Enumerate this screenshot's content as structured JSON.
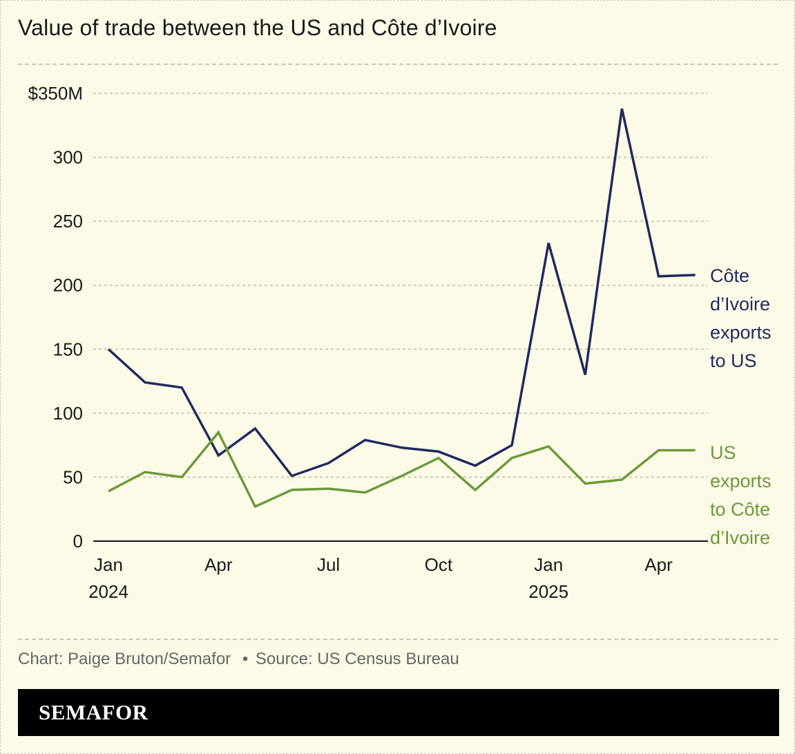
{
  "title": "Value of trade between the US and Côte d’Ivoire",
  "credit": {
    "author": "Chart: Paige Bruton/Semafor",
    "separator": "•",
    "source": "Source: US Census Bureau"
  },
  "logo": "SEMAFOR",
  "colors": {
    "background": "#fdfae8",
    "civ_exports": "#1f2a5e",
    "us_exports": "#6a9a3a",
    "grid": "#bdbaa8"
  },
  "chart_data": {
    "type": "line",
    "ylim": [
      0,
      350
    ],
    "y_ticks": [
      {
        "value": 0,
        "label": "0"
      },
      {
        "value": 50,
        "label": "50"
      },
      {
        "value": 100,
        "label": "100"
      },
      {
        "value": 150,
        "label": "150"
      },
      {
        "value": 200,
        "label": "200"
      },
      {
        "value": 250,
        "label": "250"
      },
      {
        "value": 300,
        "label": "300"
      },
      {
        "value": 350,
        "label": "$350M"
      }
    ],
    "x": [
      "2024-01",
      "2024-02",
      "2024-03",
      "2024-04",
      "2024-05",
      "2024-06",
      "2024-07",
      "2024-08",
      "2024-09",
      "2024-10",
      "2024-11",
      "2024-12",
      "2025-01",
      "2025-02",
      "2025-03",
      "2025-04",
      "2025-05"
    ],
    "x_ticks": [
      {
        "x": "2024-01",
        "line1": "Jan",
        "line2": "2024"
      },
      {
        "x": "2024-04",
        "line1": "Apr",
        "line2": ""
      },
      {
        "x": "2024-07",
        "line1": "Jul",
        "line2": ""
      },
      {
        "x": "2024-10",
        "line1": "Oct",
        "line2": ""
      },
      {
        "x": "2025-01",
        "line1": "Jan",
        "line2": "2025"
      },
      {
        "x": "2025-04",
        "line1": "Apr",
        "line2": ""
      }
    ],
    "grid": true,
    "series": [
      {
        "key": "civ",
        "label_lines": [
          "Côte",
          "d’Ivoire",
          "exports",
          "to US"
        ],
        "values": [
          150,
          124,
          120,
          67,
          88,
          51,
          61,
          79,
          73,
          70,
          59,
          75,
          233,
          130,
          338,
          207,
          208
        ]
      },
      {
        "key": "us",
        "label_lines": [
          "US",
          "exports",
          "to Côte",
          "d’Ivoire"
        ],
        "values": [
          39,
          54,
          50,
          85,
          27,
          40,
          41,
          38,
          51,
          65,
          40,
          65,
          74,
          45,
          48,
          71,
          71
        ]
      }
    ]
  }
}
